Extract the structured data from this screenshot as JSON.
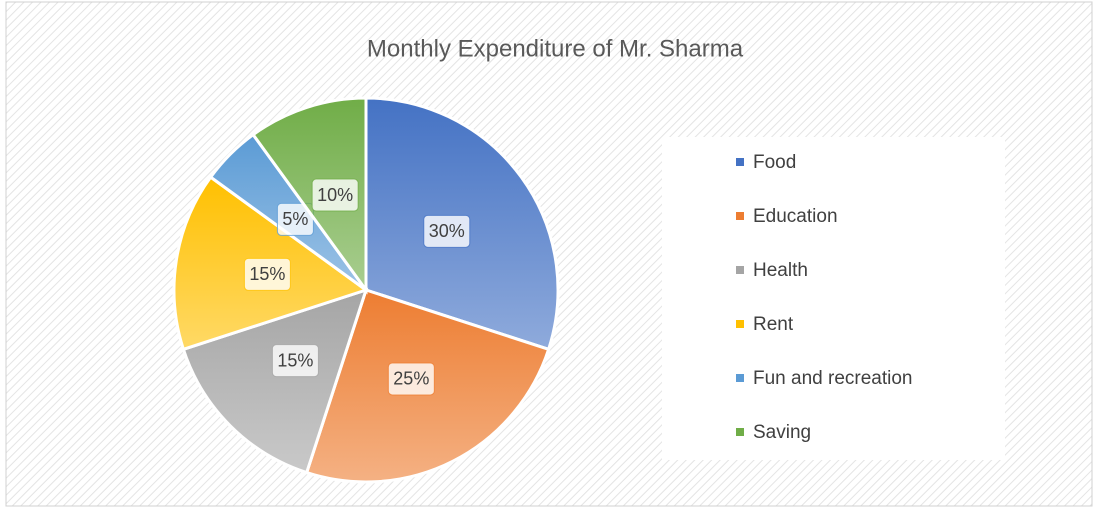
{
  "chart_data": {
    "type": "pie",
    "title": "Monthly Expenditure of Mr. Sharma",
    "categories": [
      "Food",
      "Education",
      "Health",
      "Rent",
      "Fun and recreation",
      "Saving"
    ],
    "values": [
      30,
      25,
      15,
      15,
      5,
      10
    ],
    "value_labels": [
      "30%",
      "25%",
      "15%",
      "15%",
      "5%",
      "10%"
    ],
    "colors": [
      "#4472c4",
      "#ed7d31",
      "#a5a5a5",
      "#ffc000",
      "#5b9bd5",
      "#70ad47"
    ],
    "legend": "right"
  }
}
